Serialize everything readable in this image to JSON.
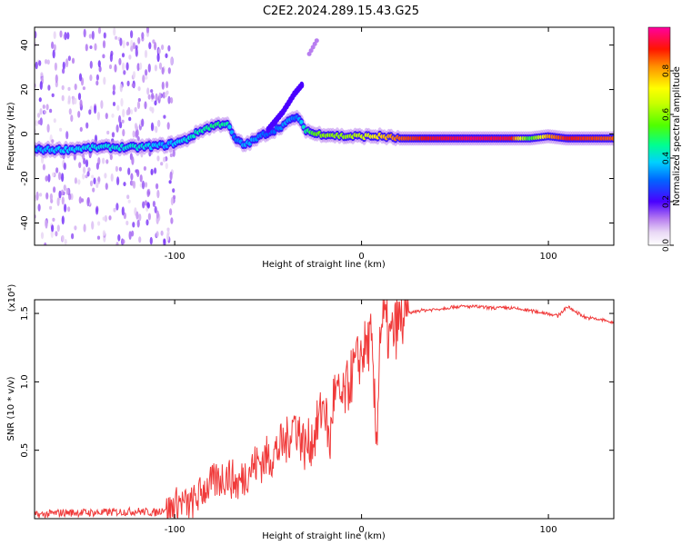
{
  "title": "C2E2.2024.289.15.43.G25",
  "colorbar": {
    "label": "Normalized spectral amplitude",
    "ticks": [
      "0.0",
      "0.2",
      "0.4",
      "0.6",
      "0.8"
    ],
    "tick_values": [
      0.0,
      0.2,
      0.4,
      0.6,
      0.8
    ],
    "range": [
      0,
      1
    ]
  },
  "chart_data": [
    {
      "type": "heatmap",
      "xlabel": "Height of straight line (km)",
      "ylabel": "Frequency (Hz)",
      "xlim": [
        -175,
        135
      ],
      "ylim": [
        -50,
        48
      ],
      "x_ticks": [
        -100,
        0,
        100
      ],
      "x_tick_labels": [
        "-100",
        "0",
        "100"
      ],
      "y_ticks": [
        -40,
        -20,
        0,
        20,
        40
      ],
      "y_tick_labels": [
        "-40",
        "-20",
        "0",
        "20",
        "40"
      ],
      "ridge": {
        "description": "dominant spectral line (frequency vs height), amplitude 0-1",
        "x": [
          -175,
          -160,
          -140,
          -120,
          -105,
          -95,
          -85,
          -78,
          -72,
          -68,
          -63,
          -58,
          -52,
          -46,
          -40,
          -35,
          -30,
          -25,
          -20,
          -10,
          0,
          10,
          20,
          40,
          60,
          80,
          90,
          100,
          110,
          120,
          135
        ],
        "frequency": [
          -7,
          -7,
          -6,
          -6,
          -5,
          -3,
          2,
          4,
          5,
          -2,
          -5,
          -3,
          0,
          2,
          5,
          8,
          2,
          0,
          0,
          -1,
          -1,
          -1,
          -2,
          -2,
          -2,
          -2,
          -2,
          -1,
          -2,
          -2,
          -2
        ],
        "amplitude": [
          0.35,
          0.38,
          0.4,
          0.42,
          0.35,
          0.4,
          0.45,
          0.48,
          0.45,
          0.3,
          0.35,
          0.35,
          0.3,
          0.3,
          0.35,
          0.3,
          0.45,
          0.55,
          0.6,
          0.6,
          0.65,
          0.75,
          0.85,
          0.92,
          0.95,
          0.92,
          0.5,
          0.8,
          0.9,
          0.88,
          0.85
        ]
      },
      "branches": [
        {
          "x": [
            -50,
            -42,
            -36,
            -32
          ],
          "frequency": [
            2,
            10,
            18,
            22
          ]
        },
        {
          "x": [
            -28,
            -24
          ],
          "frequency": [
            36,
            42
          ]
        }
      ]
    },
    {
      "type": "line",
      "xlabel": "Height of straight line (km)",
      "ylabel": "SNR (10 * v/v)",
      "y_multiplier": "(x10⁴)",
      "xlim": [
        -175,
        135
      ],
      "ylim": [
        0,
        1.6
      ],
      "x_ticks": [
        -100,
        0,
        100
      ],
      "x_tick_labels": [
        "-100",
        "0",
        "100"
      ],
      "y_ticks": [
        0.5,
        1.0,
        1.5
      ],
      "y_tick_labels": [
        "0.5",
        "1.0",
        "1.5"
      ],
      "series": [
        {
          "color": "#f03a3a",
          "x": [
            -175,
            -160,
            -140,
            -120,
            -110,
            -102,
            -98,
            -92,
            -88,
            -84,
            -78,
            -72,
            -66,
            -60,
            -54,
            -48,
            -44,
            -40,
            -36,
            -30,
            -25,
            -20,
            -17,
            -15,
            -10,
            -5,
            0,
            5,
            8,
            10,
            12,
            15,
            20,
            25,
            30,
            40,
            50,
            60,
            70,
            80,
            90,
            100,
            105,
            110,
            120,
            130,
            135
          ],
          "values": [
            0.03,
            0.05,
            0.05,
            0.06,
            0.05,
            0.1,
            0.15,
            0.12,
            0.18,
            0.25,
            0.3,
            0.35,
            0.28,
            0.4,
            0.45,
            0.5,
            0.55,
            0.6,
            0.75,
            0.55,
            0.65,
            0.9,
            0.55,
            0.95,
            0.9,
            1.1,
            1.25,
            1.35,
            0.6,
            1.45,
            1.5,
            1.35,
            1.48,
            1.5,
            1.52,
            1.53,
            1.55,
            1.55,
            1.54,
            1.54,
            1.52,
            1.5,
            1.48,
            1.55,
            1.47,
            1.45,
            1.43
          ]
        }
      ]
    }
  ]
}
